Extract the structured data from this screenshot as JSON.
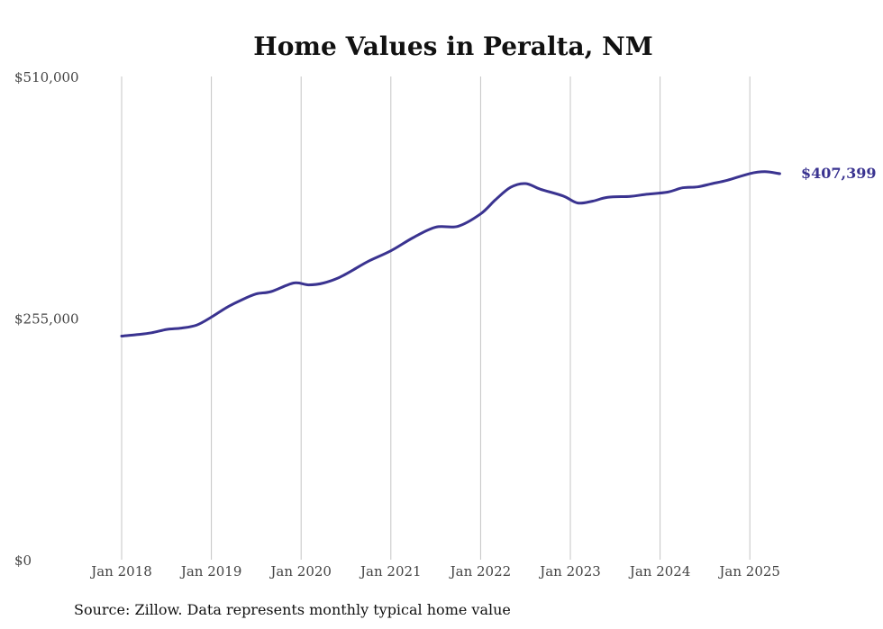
{
  "chart_data": {
    "type": "line",
    "title": "Home Values in Peralta, NM",
    "xlabel": "",
    "ylabel": "",
    "ylim": [
      0,
      510000
    ],
    "yticks": [
      0,
      255000,
      510000
    ],
    "ytick_labels": [
      "$0",
      "$255,000",
      "$510,000"
    ],
    "xticks": [
      "Jan 2018",
      "Jan 2019",
      "Jan 2020",
      "Jan 2021",
      "Jan 2022",
      "Jan 2023",
      "Jan 2024",
      "Jan 2025"
    ],
    "grid": "vertical",
    "line_color": "#3a3390",
    "end_label": "$407,399",
    "series": [
      {
        "values": [
          {
            "x": "2018-01",
            "y": 236000
          },
          {
            "x": "2018-03",
            "y": 237500
          },
          {
            "x": "2018-05",
            "y": 239500
          },
          {
            "x": "2018-07",
            "y": 243000
          },
          {
            "x": "2018-09",
            "y": 244500
          },
          {
            "x": "2018-11",
            "y": 247500
          },
          {
            "x": "2019-01",
            "y": 256000
          },
          {
            "x": "2019-03",
            "y": 266000
          },
          {
            "x": "2019-05",
            "y": 274000
          },
          {
            "x": "2019-07",
            "y": 280500
          },
          {
            "x": "2019-09",
            "y": 283000
          },
          {
            "x": "2019-12",
            "y": 292000
          },
          {
            "x": "2020-02",
            "y": 290000
          },
          {
            "x": "2020-04",
            "y": 292000
          },
          {
            "x": "2020-06",
            "y": 297500
          },
          {
            "x": "2020-08",
            "y": 306000
          },
          {
            "x": "2020-10",
            "y": 315000
          },
          {
            "x": "2021-01",
            "y": 326000
          },
          {
            "x": "2021-04",
            "y": 340000
          },
          {
            "x": "2021-07",
            "y": 351000
          },
          {
            "x": "2021-10",
            "y": 352000
          },
          {
            "x": "2022-01",
            "y": 365000
          },
          {
            "x": "2022-03",
            "y": 380000
          },
          {
            "x": "2022-05",
            "y": 393000
          },
          {
            "x": "2022-07",
            "y": 397000
          },
          {
            "x": "2022-09",
            "y": 391000
          },
          {
            "x": "2022-12",
            "y": 384000
          },
          {
            "x": "2023-02",
            "y": 376500
          },
          {
            "x": "2023-04",
            "y": 378500
          },
          {
            "x": "2023-06",
            "y": 382500
          },
          {
            "x": "2023-09",
            "y": 383500
          },
          {
            "x": "2023-11",
            "y": 385500
          },
          {
            "x": "2024-02",
            "y": 388000
          },
          {
            "x": "2024-04",
            "y": 392500
          },
          {
            "x": "2024-06",
            "y": 393500
          },
          {
            "x": "2024-08",
            "y": 397000
          },
          {
            "x": "2024-10",
            "y": 400500
          },
          {
            "x": "2025-01",
            "y": 407500
          },
          {
            "x": "2025-03",
            "y": 409500
          },
          {
            "x": "2025-05",
            "y": 407399
          }
        ]
      }
    ]
  },
  "footer": {
    "source_text": "Source: Zillow. Data represents monthly typical home value"
  }
}
